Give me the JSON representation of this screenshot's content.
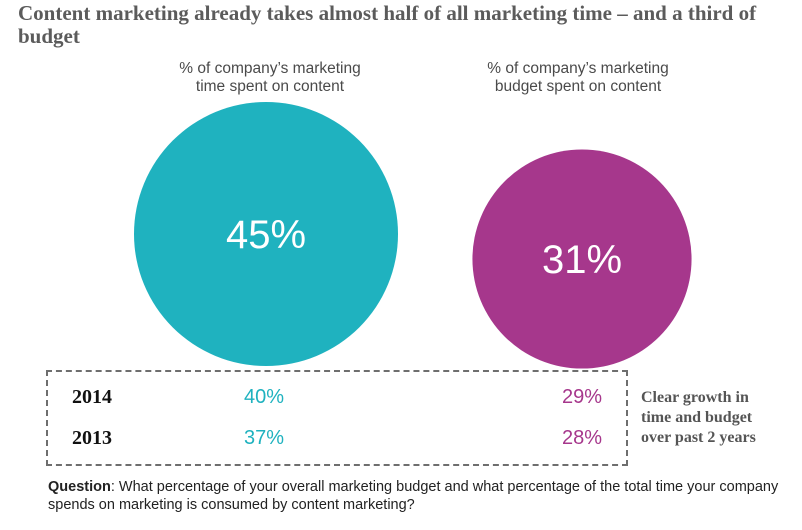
{
  "title": "Content marketing already takes almost half of all marketing time – and a third of budget",
  "colors": {
    "time": "#1fb2bf",
    "budget": "#a6378c"
  },
  "chart_data": [
    {
      "type": "bubble",
      "series": [
        {
          "name": "% of company’s marketing time spent on content",
          "value": 45,
          "label": "45%",
          "color": "#1fb2bf"
        },
        {
          "name": "% of company’s marketing budget spent on content",
          "value": 31,
          "label": "31%",
          "color": "#a6378c"
        }
      ]
    },
    {
      "type": "table",
      "rows": [
        {
          "year": "2014",
          "time": "40%",
          "budget": "29%"
        },
        {
          "year": "2013",
          "time": "37%",
          "budget": "28%"
        }
      ]
    }
  ],
  "labels": {
    "time_line1": "% of company’s marketing",
    "time_line2": "time spent on content",
    "budget_line1": "% of company’s marketing",
    "budget_line2": "budget spent on content"
  },
  "note": {
    "line1": "Clear growth in",
    "line2": "time and budget",
    "line3": "over past 2 years"
  },
  "question": {
    "label": "Question",
    "text": ": What percentage of your overall marketing budget and what percentage of the total time your company spends on marketing is consumed by content marketing?"
  }
}
